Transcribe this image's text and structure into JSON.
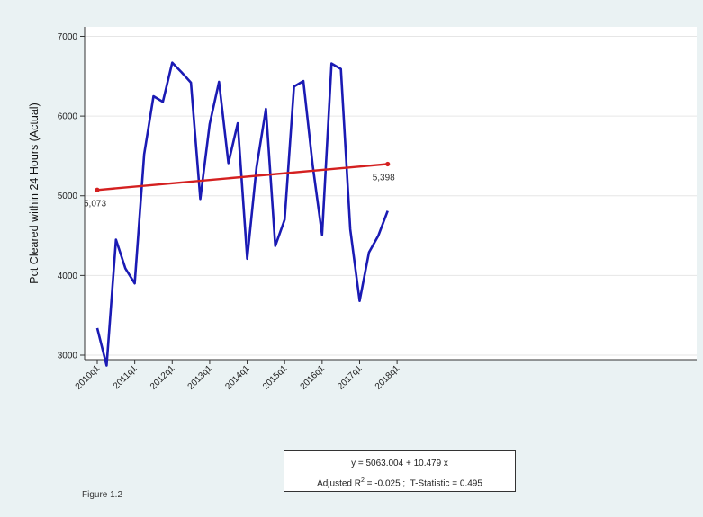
{
  "chart_data": {
    "type": "line",
    "ylabel": "Pct Cleared within 24 Hours (Actual)",
    "xlabel": "",
    "ylim": [
      2860,
      7050
    ],
    "yticks": [
      3000,
      4000,
      5000,
      6000,
      7000
    ],
    "xticks": [
      "2010q1",
      "2011q1",
      "2012q1",
      "2013q1",
      "2014q1",
      "2015q1",
      "2016q1",
      "2017q1",
      "2018q1"
    ],
    "grid": "horizontal",
    "x": [
      "2010q1",
      "2010q2",
      "2010q3",
      "2010q4",
      "2011q1",
      "2011q2",
      "2011q3",
      "2011q4",
      "2012q1",
      "2012q2",
      "2012q3",
      "2012q4",
      "2013q1",
      "2013q2",
      "2013q3",
      "2013q4",
      "2014q1",
      "2014q2",
      "2014q3",
      "2014q4",
      "2015q1",
      "2015q2",
      "2015q3",
      "2015q4",
      "2016q1",
      "2016q2",
      "2016q3",
      "2016q4",
      "2017q1",
      "2017q2",
      "2017q3",
      "2017q4"
    ],
    "series": [
      {
        "color": "#1a1ab4",
        "values": [
          3340,
          2870,
          4450,
          4090,
          3900,
          5520,
          6250,
          6180,
          6670,
          6550,
          6420,
          4960,
          5900,
          6430,
          5410,
          5910,
          4210,
          5360,
          6090,
          4370,
          4700,
          6370,
          6440,
          5380,
          4510,
          6660,
          6590,
          4580,
          3680,
          4290,
          4500,
          4810
        ]
      },
      {
        "color": "#d42020",
        "type": "trend",
        "start": {
          "x": "2010q1",
          "y": 5073,
          "label": "5,073"
        },
        "end": {
          "x": "2017q4",
          "y": 5398,
          "label": "5,398"
        }
      }
    ],
    "annotation": {
      "line1": "y = 5063.004  +  10.479 x",
      "line2_prefix": "Adjusted R",
      "line2_sup": "2",
      "line2_suffix": " = -0.025 ;  T-Statistic = 0.495"
    }
  },
  "caption": "Figure 1.2"
}
